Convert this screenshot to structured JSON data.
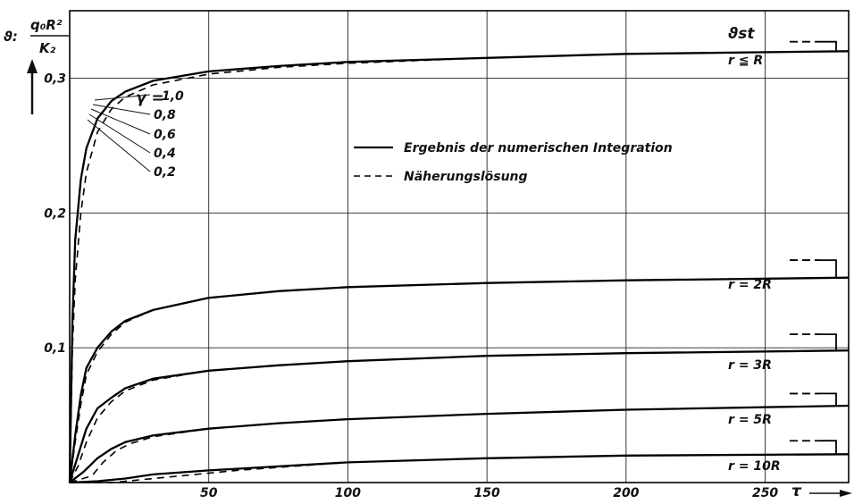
{
  "chart_data": {
    "type": "line",
    "y_axis_label": {
      "symbol": "ϑ:",
      "numerator": "q₀R²",
      "denominator": "K₂"
    },
    "x_axis_label": "τ",
    "xlim": [
      0,
      280
    ],
    "ylim": [
      0,
      0.35
    ],
    "x_ticks": [
      {
        "value": 50,
        "label": "50"
      },
      {
        "value": 100,
        "label": "100"
      },
      {
        "value": 150,
        "label": "150"
      },
      {
        "value": 200,
        "label": "200"
      },
      {
        "value": 250,
        "label": "250"
      }
    ],
    "y_ticks": [
      {
        "value": 0.1,
        "label": "0,1"
      },
      {
        "value": 0.2,
        "label": "0,2"
      },
      {
        "value": 0.3,
        "label": "0,3"
      }
    ],
    "grid": true,
    "legend": {
      "placement": "center-top",
      "entries": [
        {
          "style": "solid",
          "label": "Ergebnis der numerischen Integration"
        },
        {
          "style": "dashed",
          "label": "Näherungslösung"
        }
      ]
    },
    "gamma_labels": {
      "prefix": "γ =",
      "values": [
        "1,0",
        "0,8",
        "0,6",
        "0,4",
        "0,2"
      ]
    },
    "steady_state_label": "ϑst",
    "series": [
      {
        "name": "r ≦ R",
        "steady_value": 0.327,
        "numeric": [
          [
            0,
            0
          ],
          [
            1,
            0.12
          ],
          [
            2,
            0.18
          ],
          [
            4,
            0.225
          ],
          [
            6,
            0.248
          ],
          [
            10,
            0.27
          ],
          [
            15,
            0.283
          ],
          [
            20,
            0.29
          ],
          [
            30,
            0.298
          ],
          [
            50,
            0.305
          ],
          [
            75,
            0.309
          ],
          [
            100,
            0.312
          ],
          [
            150,
            0.315
          ],
          [
            200,
            0.318
          ],
          [
            280,
            0.32
          ]
        ],
        "approx": [
          [
            0,
            0
          ],
          [
            1,
            0.1
          ],
          [
            2,
            0.15
          ],
          [
            4,
            0.2
          ],
          [
            6,
            0.23
          ],
          [
            10,
            0.26
          ],
          [
            15,
            0.277
          ],
          [
            20,
            0.286
          ],
          [
            30,
            0.295
          ],
          [
            50,
            0.303
          ],
          [
            75,
            0.308
          ],
          [
            100,
            0.311
          ],
          [
            150,
            0.315
          ],
          [
            200,
            0.318
          ],
          [
            280,
            0.32
          ]
        ]
      },
      {
        "name": "r = 2R",
        "steady_value": 0.165,
        "numeric": [
          [
            0,
            0
          ],
          [
            2,
            0.035
          ],
          [
            4,
            0.065
          ],
          [
            6,
            0.085
          ],
          [
            10,
            0.1
          ],
          [
            15,
            0.112
          ],
          [
            20,
            0.12
          ],
          [
            30,
            0.128
          ],
          [
            50,
            0.137
          ],
          [
            75,
            0.142
          ],
          [
            100,
            0.145
          ],
          [
            150,
            0.148
          ],
          [
            200,
            0.15
          ],
          [
            280,
            0.152
          ]
        ],
        "approx": [
          [
            0,
            0
          ],
          [
            2,
            0.03
          ],
          [
            4,
            0.058
          ],
          [
            6,
            0.08
          ],
          [
            10,
            0.097
          ],
          [
            15,
            0.11
          ],
          [
            20,
            0.119
          ],
          [
            30,
            0.128
          ],
          [
            50,
            0.137
          ],
          [
            75,
            0.142
          ],
          [
            100,
            0.145
          ],
          [
            150,
            0.148
          ],
          [
            200,
            0.15
          ],
          [
            280,
            0.152
          ]
        ]
      },
      {
        "name": "r = 3R",
        "steady_value": 0.11,
        "numeric": [
          [
            0,
            0
          ],
          [
            3,
            0.02
          ],
          [
            6,
            0.04
          ],
          [
            10,
            0.055
          ],
          [
            15,
            0.063
          ],
          [
            20,
            0.07
          ],
          [
            30,
            0.077
          ],
          [
            50,
            0.083
          ],
          [
            75,
            0.087
          ],
          [
            100,
            0.09
          ],
          [
            150,
            0.094
          ],
          [
            200,
            0.096
          ],
          [
            280,
            0.098
          ]
        ],
        "approx": [
          [
            0,
            0
          ],
          [
            3,
            0.012
          ],
          [
            6,
            0.03
          ],
          [
            10,
            0.048
          ],
          [
            15,
            0.06
          ],
          [
            20,
            0.068
          ],
          [
            30,
            0.076
          ],
          [
            50,
            0.083
          ],
          [
            75,
            0.087
          ],
          [
            100,
            0.09
          ],
          [
            150,
            0.094
          ],
          [
            200,
            0.096
          ],
          [
            280,
            0.098
          ]
        ]
      },
      {
        "name": "r = 5R",
        "steady_value": 0.066,
        "numeric": [
          [
            0,
            0
          ],
          [
            5,
            0.008
          ],
          [
            10,
            0.018
          ],
          [
            15,
            0.025
          ],
          [
            20,
            0.03
          ],
          [
            30,
            0.035
          ],
          [
            50,
            0.04
          ],
          [
            75,
            0.044
          ],
          [
            100,
            0.047
          ],
          [
            150,
            0.051
          ],
          [
            200,
            0.054
          ],
          [
            280,
            0.057
          ]
        ],
        "approx": [
          [
            0,
            0
          ],
          [
            8,
            0.005
          ],
          [
            12,
            0.015
          ],
          [
            17,
            0.024
          ],
          [
            22,
            0.029
          ],
          [
            30,
            0.034
          ],
          [
            50,
            0.04
          ],
          [
            75,
            0.044
          ],
          [
            100,
            0.047
          ],
          [
            150,
            0.051
          ],
          [
            200,
            0.054
          ],
          [
            280,
            0.057
          ]
        ]
      },
      {
        "name": "r = 10R",
        "steady_value": 0.031,
        "numeric": [
          [
            0,
            0
          ],
          [
            10,
            0.001
          ],
          [
            20,
            0.003
          ],
          [
            30,
            0.006
          ],
          [
            50,
            0.009
          ],
          [
            75,
            0.012
          ],
          [
            100,
            0.015
          ],
          [
            150,
            0.018
          ],
          [
            200,
            0.02
          ],
          [
            280,
            0.021
          ]
        ],
        "approx": [
          [
            0,
            0
          ],
          [
            15,
            0
          ],
          [
            25,
            0.002
          ],
          [
            40,
            0.005
          ],
          [
            60,
            0.009
          ],
          [
            80,
            0.012
          ],
          [
            100,
            0.015
          ],
          [
            150,
            0.018
          ],
          [
            200,
            0.02
          ],
          [
            280,
            0.021
          ]
        ]
      }
    ]
  }
}
